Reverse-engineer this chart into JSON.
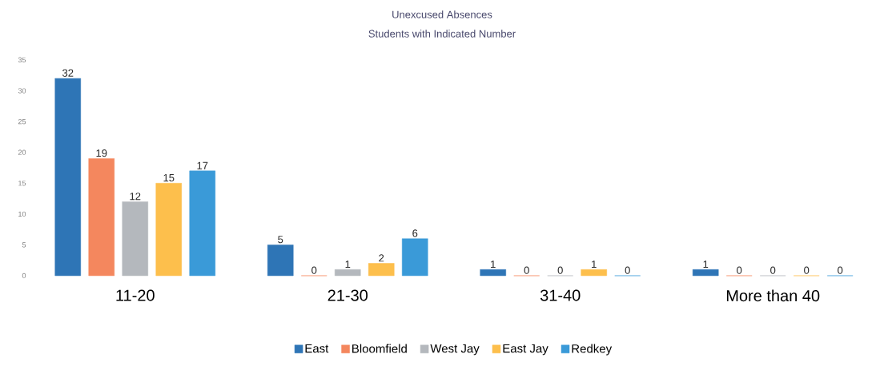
{
  "chart_data": {
    "type": "bar",
    "title": "Unexcused Absences",
    "subtitle": "Students with Indicated Number",
    "categories": [
      "11-20",
      "21-30",
      "31-40",
      "More than 40"
    ],
    "series": [
      {
        "name": "East",
        "color": "#2e75b6",
        "values": [
          32,
          5,
          1,
          1
        ]
      },
      {
        "name": "Bloomfield",
        "color": "#f4875e",
        "values": [
          19,
          0,
          0,
          0
        ]
      },
      {
        "name": "West Jay",
        "color": "#b4b8bd",
        "values": [
          12,
          1,
          0,
          0
        ]
      },
      {
        "name": "East Jay",
        "color": "#fdbf4c",
        "values": [
          15,
          2,
          1,
          0
        ]
      },
      {
        "name": "Redkey",
        "color": "#3a9ad8",
        "values": [
          17,
          6,
          0,
          0
        ]
      }
    ],
    "ylim": [
      0,
      35
    ],
    "yticks": [
      0,
      5,
      10,
      15,
      20,
      25,
      30,
      35
    ],
    "data_labels": true,
    "legend": "bottom"
  }
}
